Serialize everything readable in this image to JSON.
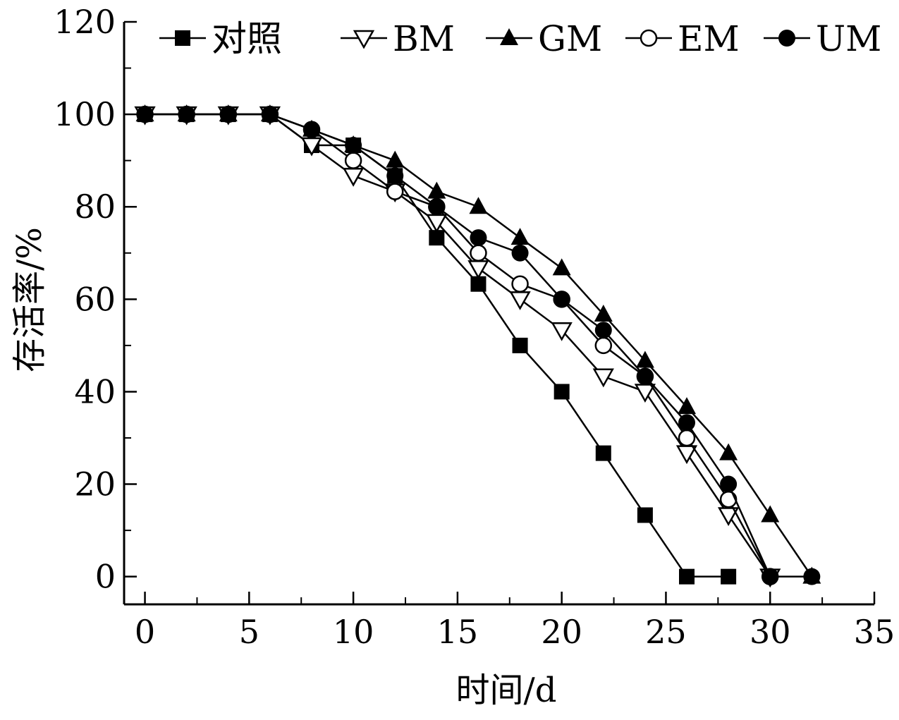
{
  "chart_data": {
    "type": "line",
    "xlabel": "时间/d",
    "ylabel": "存活率/%",
    "xlim": [
      -1,
      35
    ],
    "ylim": [
      -6,
      120
    ],
    "x_ticks": [
      0,
      5,
      10,
      15,
      20,
      25,
      30,
      35
    ],
    "y_ticks": [
      0,
      20,
      40,
      60,
      80,
      100,
      120
    ],
    "grid": false,
    "legend_position": "top",
    "x": [
      0,
      2,
      4,
      6,
      8,
      10,
      12,
      14,
      16,
      18,
      20,
      22,
      24,
      26,
      28,
      30,
      32
    ],
    "series": [
      {
        "name": "对照",
        "marker": "filled-square",
        "values": [
          100,
          100,
          100,
          100,
          93.3,
          93.3,
          86.7,
          73.3,
          63.3,
          50,
          40,
          26.7,
          13.3,
          0,
          0,
          null,
          null
        ]
      },
      {
        "name": "BM",
        "marker": "open-triangle-down",
        "values": [
          100,
          100,
          100,
          100,
          93.3,
          86.7,
          83.3,
          76.7,
          66.7,
          60,
          53.3,
          43.3,
          40,
          26.7,
          13.3,
          0,
          null
        ]
      },
      {
        "name": "GM",
        "marker": "filled-triangle-up",
        "values": [
          100,
          100,
          100,
          100,
          96.7,
          93.3,
          90,
          83.3,
          80,
          73.3,
          66.7,
          56.7,
          46.7,
          36.7,
          26.7,
          13.3,
          0
        ]
      },
      {
        "name": "EM",
        "marker": "open-circle",
        "values": [
          100,
          100,
          100,
          100,
          96.7,
          90,
          83.3,
          80,
          70,
          63.3,
          60,
          50,
          43.3,
          30,
          16.7,
          0,
          null
        ]
      },
      {
        "name": "UM",
        "marker": "filled-circle",
        "values": [
          100,
          100,
          100,
          100,
          96.7,
          93.3,
          86.7,
          80,
          73.3,
          70,
          60,
          53.3,
          43.3,
          33.3,
          20,
          0,
          0
        ]
      }
    ]
  }
}
